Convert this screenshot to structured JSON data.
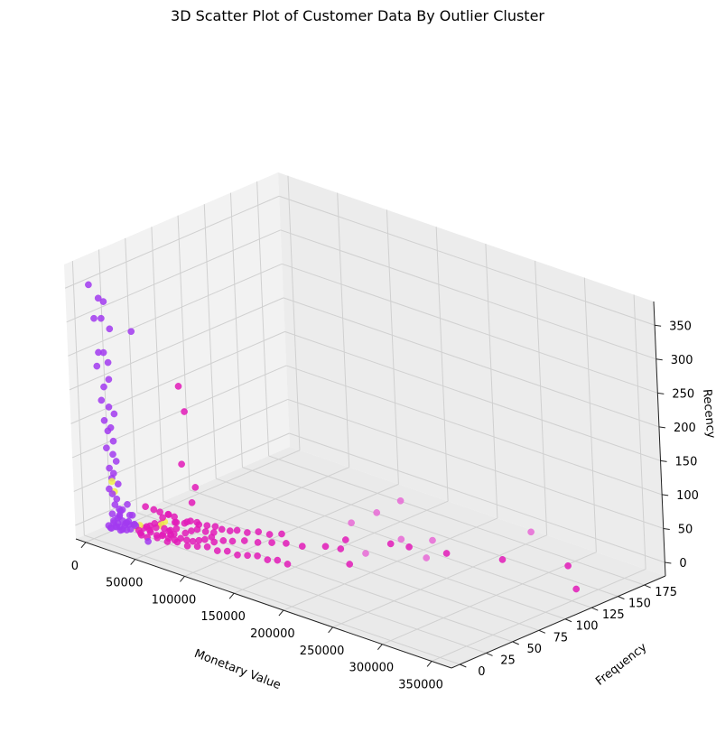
{
  "chart_data": {
    "type": "scatter",
    "projection": "3d",
    "title": "3D Scatter Plot of Customer Data By Outlier Cluster",
    "xlabel": "Monetary Value",
    "ylabel": "Frequency",
    "zlabel": "Recency",
    "xticks": [
      "0",
      "50000",
      "100000",
      "150000",
      "200000",
      "250000",
      "300000",
      "350000"
    ],
    "yticks": [
      "0",
      "25",
      "50",
      "75",
      "100",
      "125",
      "150",
      "175"
    ],
    "zticks": [
      "0",
      "50",
      "100",
      "150",
      "200",
      "250",
      "300",
      "350"
    ],
    "xlim": [
      -10000,
      370000
    ],
    "ylim": [
      -8,
      195
    ],
    "zlim": [
      -20,
      385
    ],
    "grid": true,
    "legend": "none",
    "colors": {
      "cluster_purple": "#a23bf0",
      "cluster_light_purple": "#b84ff0",
      "cluster_magenta": "#e21bb8",
      "cluster_pink": "#e86ad6",
      "cluster_yellow": "#f0f04a",
      "pane": "#f2f2f2",
      "grid": "#d0d0d0"
    },
    "series": [
      {
        "color_key": "cluster_purple",
        "points": [
          [
            3000,
            2,
            355
          ],
          [
            8000,
            6,
            335
          ],
          [
            11000,
            8,
            330
          ],
          [
            5000,
            4,
            305
          ],
          [
            9000,
            7,
            305
          ],
          [
            14000,
            10,
            290
          ],
          [
            25000,
            20,
            285
          ],
          [
            7000,
            5,
            255
          ],
          [
            10000,
            7,
            255
          ],
          [
            12000,
            9,
            240
          ],
          [
            6000,
            4,
            235
          ],
          [
            12000,
            9,
            215
          ],
          [
            10000,
            6,
            205
          ],
          [
            8000,
            5,
            185
          ],
          [
            12000,
            8,
            175
          ],
          [
            15000,
            10,
            165
          ],
          [
            9000,
            6,
            155
          ],
          [
            13000,
            8,
            145
          ],
          [
            11000,
            7,
            140
          ],
          [
            14000,
            9,
            125
          ],
          [
            10000,
            6,
            115
          ],
          [
            13000,
            9,
            105
          ],
          [
            15000,
            10,
            95
          ],
          [
            11000,
            7,
            85
          ],
          [
            14000,
            8,
            78
          ],
          [
            12000,
            8,
            70
          ],
          [
            16000,
            10,
            62
          ],
          [
            11000,
            6,
            55
          ],
          [
            13000,
            7,
            48
          ],
          [
            15000,
            9,
            40
          ],
          [
            14000,
            8,
            32
          ],
          [
            16000,
            10,
            25
          ],
          [
            12000,
            7,
            18
          ],
          [
            15000,
            9,
            12
          ],
          [
            18000,
            11,
            8
          ],
          [
            20000,
            13,
            5
          ],
          [
            12000,
            8,
            4
          ],
          [
            14000,
            10,
            3
          ],
          [
            16000,
            6,
            2
          ],
          [
            10000,
            5,
            1
          ],
          [
            13000,
            4,
            0
          ],
          [
            17000,
            9,
            0
          ],
          [
            19000,
            12,
            1
          ],
          [
            21000,
            14,
            2
          ],
          [
            15000,
            3,
            1
          ],
          [
            18000,
            5,
            3
          ],
          [
            11000,
            9,
            6
          ],
          [
            22000,
            10,
            7
          ],
          [
            24000,
            11,
            10
          ],
          [
            26000,
            14,
            4
          ],
          [
            28000,
            9,
            2
          ],
          [
            23000,
            6,
            1
          ],
          [
            20000,
            16,
            14
          ],
          [
            27000,
            12,
            20
          ],
          [
            25000,
            8,
            0
          ],
          [
            29000,
            13,
            5
          ],
          [
            30000,
            11,
            9
          ],
          [
            16000,
            13,
            22
          ],
          [
            19000,
            15,
            30
          ],
          [
            22000,
            5,
            0
          ],
          [
            52000,
            3,
            0
          ],
          [
            24000,
            4,
            30
          ],
          [
            14000,
            12,
            14
          ],
          [
            18000,
            8,
            16
          ]
        ]
      },
      {
        "color_key": "cluster_magenta",
        "points": [
          [
            60000,
            30,
            215
          ],
          [
            65000,
            30,
            180
          ],
          [
            60000,
            30,
            100
          ],
          [
            62000,
            40,
            60
          ],
          [
            32000,
            20,
            30
          ],
          [
            36000,
            24,
            25
          ],
          [
            40000,
            26,
            22
          ],
          [
            44000,
            30,
            18
          ],
          [
            48000,
            32,
            15
          ],
          [
            52000,
            30,
            10
          ],
          [
            56000,
            34,
            8
          ],
          [
            60000,
            36,
            12
          ],
          [
            64000,
            40,
            6
          ],
          [
            68000,
            44,
            4
          ],
          [
            72000,
            48,
            2
          ],
          [
            38000,
            18,
            6
          ],
          [
            42000,
            20,
            4
          ],
          [
            46000,
            24,
            2
          ],
          [
            50000,
            26,
            0
          ],
          [
            54000,
            28,
            3
          ],
          [
            58000,
            22,
            1
          ],
          [
            34000,
            16,
            2
          ],
          [
            39000,
            14,
            8
          ],
          [
            43000,
            18,
            12
          ],
          [
            47000,
            22,
            20
          ],
          [
            51000,
            24,
            25
          ],
          [
            55000,
            20,
            5
          ],
          [
            59000,
            18,
            3
          ],
          [
            63000,
            28,
            1
          ],
          [
            67000,
            30,
            5
          ],
          [
            71000,
            32,
            8
          ],
          [
            75000,
            36,
            4
          ],
          [
            79000,
            40,
            2
          ],
          [
            83000,
            44,
            6
          ],
          [
            87000,
            48,
            3
          ],
          [
            92000,
            50,
            5
          ],
          [
            98000,
            54,
            2
          ],
          [
            105000,
            58,
            4
          ],
          [
            112000,
            62,
            1
          ],
          [
            120000,
            66,
            3
          ],
          [
            36000,
            30,
            0
          ],
          [
            44000,
            36,
            2
          ],
          [
            52000,
            40,
            4
          ],
          [
            60000,
            42,
            6
          ],
          [
            33000,
            12,
            1
          ],
          [
            37000,
            10,
            0
          ],
          [
            41000,
            15,
            3
          ],
          [
            45000,
            12,
            4
          ],
          [
            49000,
            14,
            0
          ],
          [
            53000,
            16,
            2
          ],
          [
            57000,
            12,
            5
          ],
          [
            61000,
            14,
            2
          ],
          [
            65000,
            16,
            0
          ],
          [
            69000,
            18,
            3
          ],
          [
            73000,
            20,
            1
          ],
          [
            77000,
            22,
            0
          ],
          [
            81000,
            24,
            2
          ],
          [
            85000,
            26,
            4
          ],
          [
            90000,
            30,
            0
          ],
          [
            95000,
            34,
            2
          ],
          [
            100000,
            38,
            1
          ],
          [
            108000,
            42,
            3
          ],
          [
            115000,
            48,
            0
          ],
          [
            125000,
            52,
            2
          ],
          [
            133000,
            58,
            1
          ],
          [
            145000,
            62,
            0
          ],
          [
            160000,
            70,
            2
          ],
          [
            170000,
            75,
            0
          ],
          [
            205000,
            90,
            15
          ],
          [
            215000,
            98,
            10
          ],
          [
            240000,
            110,
            5
          ],
          [
            170000,
            80,
            10
          ],
          [
            195000,
            60,
            0
          ],
          [
            40000,
            8,
            0
          ],
          [
            48000,
            6,
            2
          ],
          [
            56000,
            8,
            4
          ],
          [
            64000,
            10,
            1
          ],
          [
            72000,
            12,
            3
          ],
          [
            80000,
            14,
            0
          ],
          [
            88000,
            16,
            2
          ],
          [
            96000,
            18,
            4
          ],
          [
            104000,
            20,
            1
          ],
          [
            112000,
            22,
            3
          ],
          [
            120000,
            24,
            0
          ],
          [
            128000,
            26,
            2
          ],
          [
            136000,
            28,
            4
          ],
          [
            144000,
            30,
            1
          ],
          [
            152000,
            32,
            3
          ],
          [
            160000,
            34,
            0
          ],
          [
            80000,
            20,
            60
          ],
          [
            82000,
            35,
            0
          ],
          [
            275000,
            130,
            0
          ],
          [
            320000,
            150,
            0
          ],
          [
            355000,
            125,
            0
          ]
        ]
      },
      {
        "color_key": "cluster_pink",
        "points": [
          [
            195000,
            110,
            60
          ],
          [
            300000,
            135,
            50
          ],
          [
            170000,
            110,
            30
          ],
          [
            205000,
            100,
            15
          ],
          [
            160000,
            95,
            20
          ],
          [
            215000,
            120,
            5
          ],
          [
            190000,
            80,
            0
          ],
          [
            230000,
            100,
            0
          ]
        ]
      },
      {
        "color_key": "cluster_yellow",
        "points": [
          [
            12000,
            8,
            65
          ],
          [
            13000,
            9,
            50
          ],
          [
            38000,
            28,
            0
          ],
          [
            40000,
            30,
            5
          ],
          [
            28000,
            14,
            2
          ],
          [
            30000,
            16,
            4
          ]
        ]
      }
    ]
  }
}
